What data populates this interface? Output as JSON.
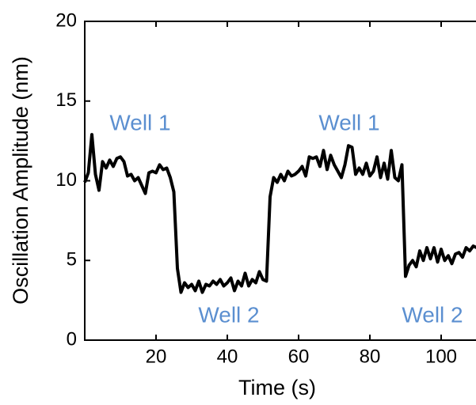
{
  "chart_data": {
    "type": "line",
    "xlabel": "Time (s)",
    "ylabel": "Oscillation Amplitude (nm)",
    "annotations": [
      "Well 1",
      "Well 2",
      "Well 1",
      "Well 2"
    ],
    "annotation_color": "#5b8fd0",
    "x": [
      0,
      1,
      2,
      3,
      4,
      5,
      6,
      7,
      8,
      9,
      10,
      11,
      12,
      13,
      14,
      15,
      16,
      17,
      18,
      19,
      20,
      21,
      22,
      23,
      24,
      25,
      26,
      27,
      28,
      29,
      30,
      31,
      32,
      33,
      34,
      35,
      36,
      37,
      38,
      39,
      40,
      41,
      42,
      43,
      44,
      45,
      46,
      47,
      48,
      49,
      50,
      51,
      52,
      53,
      54,
      55,
      56,
      57,
      58,
      59,
      60,
      61,
      62,
      63,
      64,
      65,
      66,
      67,
      68,
      69,
      70,
      71,
      72,
      73,
      74,
      75,
      76,
      77,
      78,
      79,
      80,
      81,
      82,
      83,
      84,
      85,
      86,
      87,
      88,
      89,
      90,
      91,
      92,
      93,
      94,
      95,
      96,
      97,
      98,
      99,
      100,
      101,
      102,
      103,
      104,
      105,
      106,
      107,
      108,
      109,
      110
    ],
    "series": [
      {
        "color": "#000000",
        "values": [
          9.9,
          10.5,
          12.9,
          10.4,
          9.4,
          11.2,
          10.8,
          11.3,
          10.9,
          11.4,
          11.5,
          11.2,
          10.3,
          10.4,
          10.0,
          10.2,
          9.7,
          9.2,
          10.5,
          10.6,
          10.5,
          11.0,
          10.7,
          10.8,
          10.2,
          9.3,
          4.5,
          3.0,
          3.6,
          3.3,
          3.5,
          3.1,
          3.7,
          3.0,
          3.5,
          3.4,
          3.7,
          3.5,
          3.8,
          3.4,
          3.6,
          3.9,
          3.1,
          3.7,
          3.4,
          4.2,
          3.4,
          3.8,
          3.6,
          4.3,
          3.8,
          3.7,
          9.0,
          10.2,
          9.9,
          10.4,
          10.0,
          10.6,
          10.3,
          10.4,
          10.6,
          10.9,
          10.3,
          11.5,
          11.4,
          11.5,
          10.9,
          11.9,
          10.7,
          11.6,
          11.0,
          10.6,
          10.2,
          11.0,
          12.2,
          12.1,
          10.4,
          10.8,
          10.4,
          11.1,
          10.3,
          10.6,
          11.5,
          10.2,
          11.1,
          10.1,
          11.9,
          10.2,
          10.0,
          11.0,
          4.0,
          4.7,
          5.0,
          4.6,
          5.6,
          5.0,
          5.8,
          5.1,
          5.8,
          4.9,
          5.7,
          5.0,
          5.3,
          4.8,
          5.4,
          5.5,
          5.2,
          5.8,
          5.6,
          5.9,
          5.8
        ]
      }
    ],
    "xlim": [
      0,
      110
    ],
    "xticks": [
      20,
      40,
      60,
      80,
      100
    ],
    "ylim": [
      0,
      20
    ],
    "yticks": [
      0,
      5,
      10,
      15,
      20
    ]
  }
}
